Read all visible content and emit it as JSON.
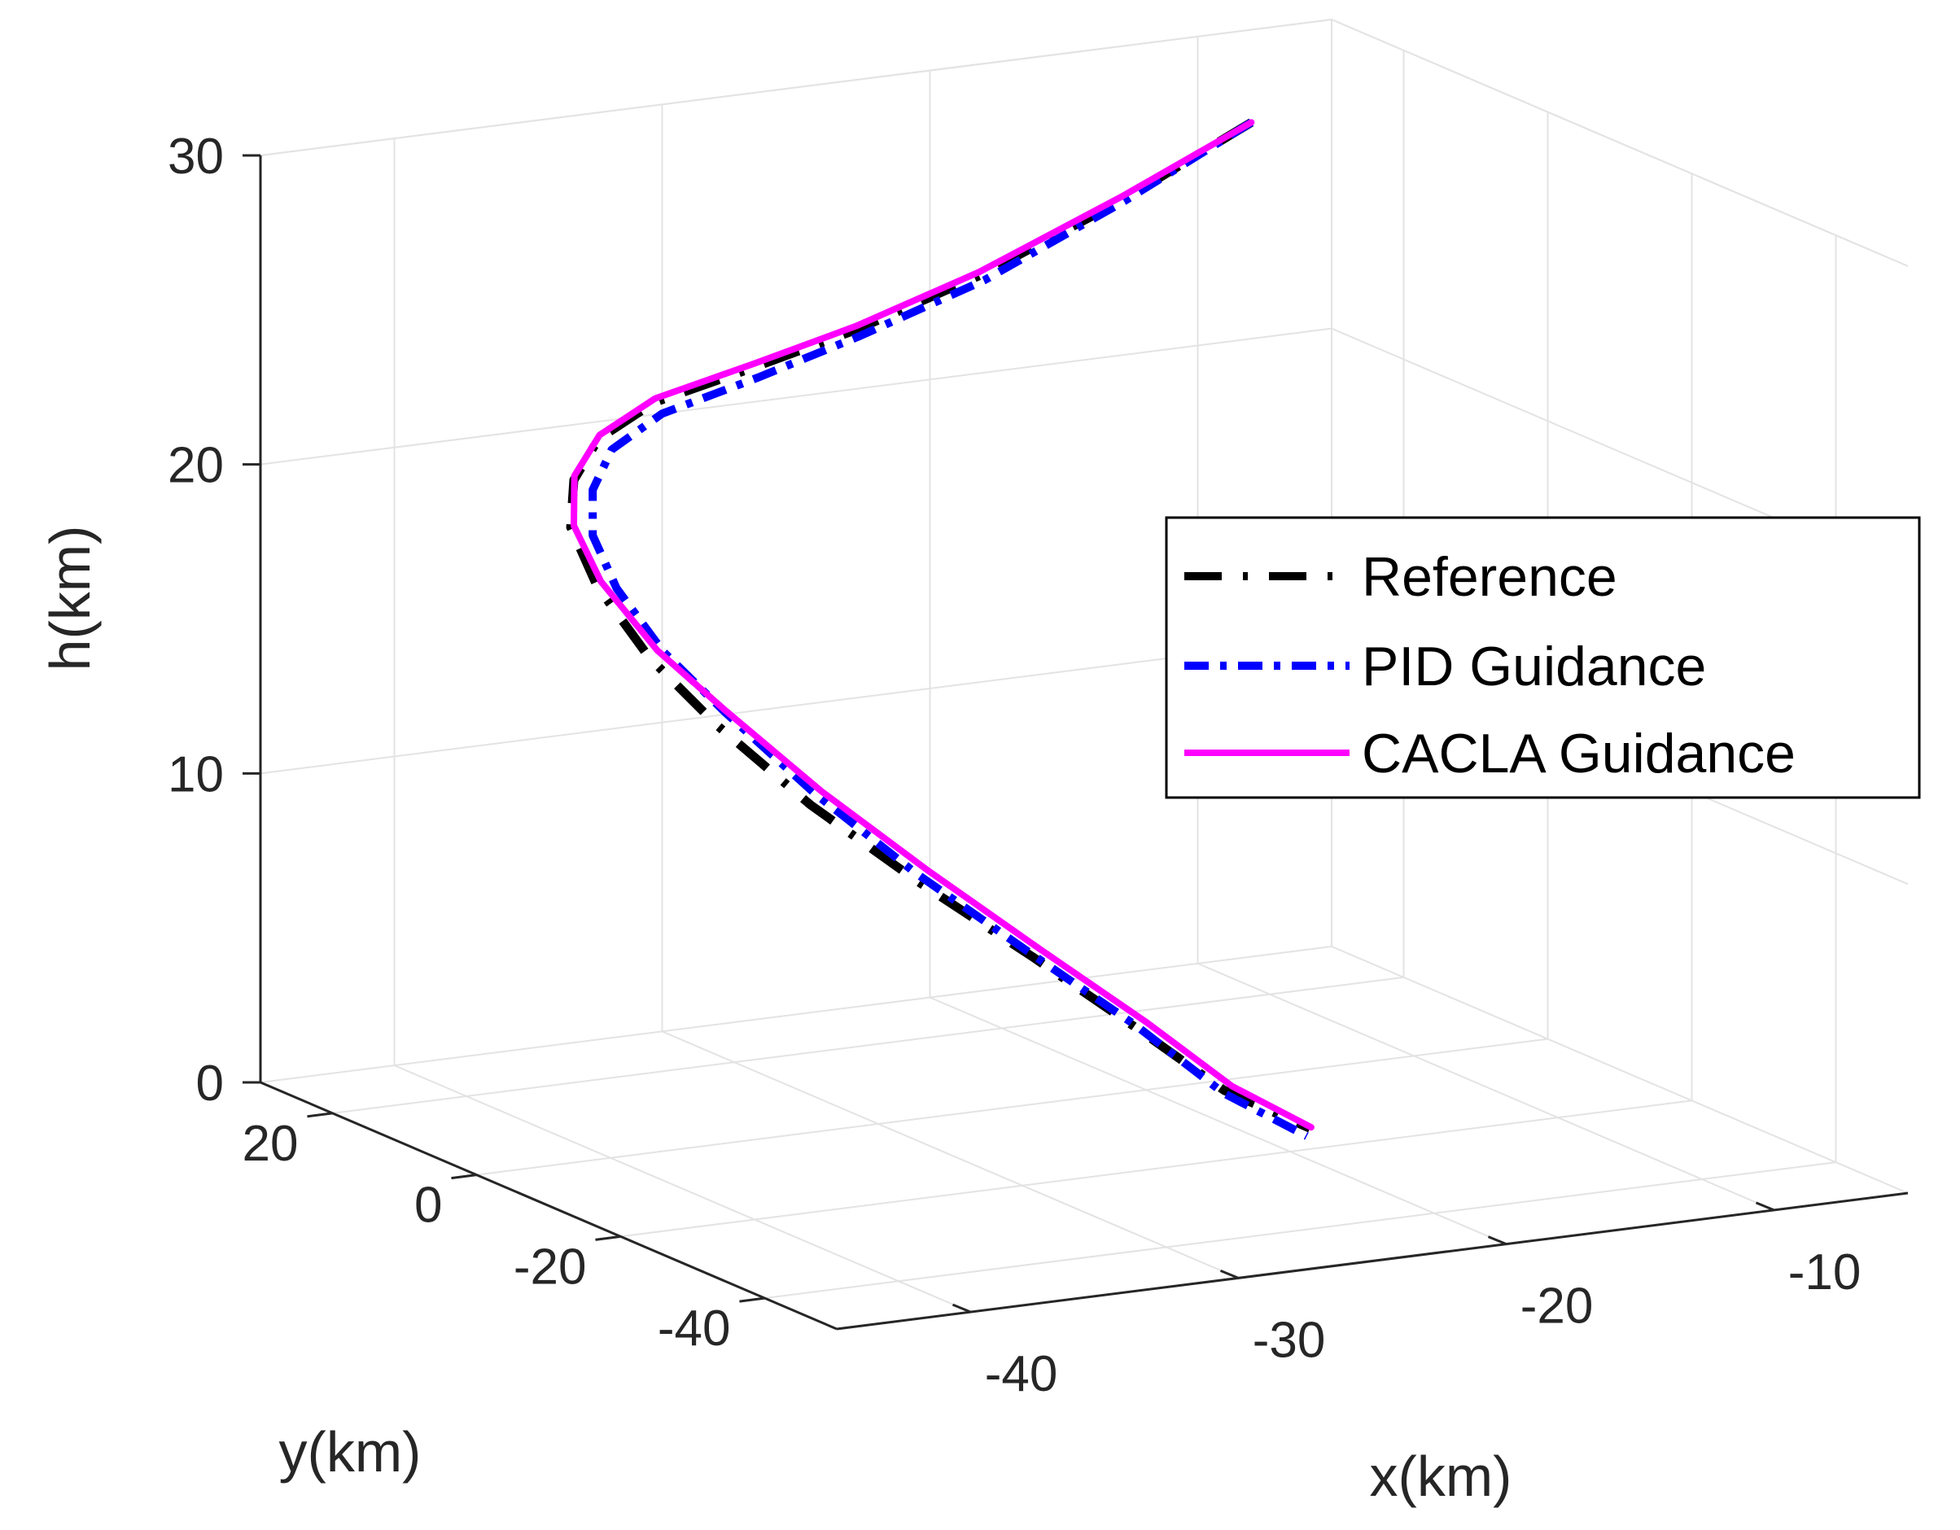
{
  "chart_data": {
    "type": "line3d",
    "title": "",
    "xlabel": "x(km)",
    "ylabel": "y(km)",
    "zlabel": "h(km)",
    "xlim": [
      -45,
      -5
    ],
    "ylim": [
      -50,
      30
    ],
    "zlim": [
      0,
      30
    ],
    "x_ticks": [
      -40,
      -30,
      -20,
      -10
    ],
    "x_tick_labels": [
      "-40",
      "-30",
      "-20",
      "-10"
    ],
    "y_ticks": [
      -40,
      -20,
      0,
      20
    ],
    "y_tick_labels": [
      "-40",
      "-20",
      "0",
      "20"
    ],
    "z_ticks": [
      0,
      10,
      20,
      30
    ],
    "z_tick_labels": [
      "0",
      "10",
      "20",
      "30"
    ],
    "grid": true,
    "legend_position": "right",
    "series": [
      {
        "name": "Reference",
        "color": "#000000",
        "style": "dash-dot",
        "x": [
          -8.0,
          -12.8,
          -18.0,
          -22.5,
          -26.1,
          -29.5,
          -31.9,
          -33.7,
          -35.3,
          -36.2,
          -36.4,
          -35.9,
          -34.4,
          -32.3,
          -29.9,
          -27.8,
          -26.1,
          -24.1
        ],
        "y": [
          30.0,
          30.1,
          30.5,
          30.9,
          31.7,
          33.0,
          31.8,
          28.5,
          23.0,
          16.0,
          8.0,
          0.4,
          -7.0,
          -14.0,
          -21.0,
          -28.0,
          -33.5,
          -38.0
        ],
        "h": [
          27.0,
          25.0,
          23.1,
          21.8,
          20.9,
          20.0,
          19.2,
          18.4,
          17.6,
          16.5,
          15.0,
          13.5,
          11.5,
          9.5,
          7.5,
          5.6,
          4.0,
          3.0
        ]
      },
      {
        "name": "PID Guidance",
        "color": "#0000ff",
        "style": "dash-dot",
        "x": [
          -8.0,
          -12.8,
          -18.0,
          -22.6,
          -26.3,
          -29.6,
          -31.8,
          -33.4,
          -34.8,
          -35.6,
          -35.8,
          -35.4,
          -34.1,
          -32.2,
          -29.9,
          -27.8,
          -26.1,
          -24.3
        ],
        "y": [
          30.0,
          29.8,
          29.9,
          30.0,
          30.5,
          31.5,
          30.3,
          27.0,
          21.8,
          15.5,
          8.3,
          1.2,
          -6.3,
          -13.3,
          -20.5,
          -27.5,
          -33.5,
          -38.3
        ],
        "h": [
          27.0,
          25.0,
          23.0,
          21.7,
          20.7,
          19.8,
          19.0,
          18.2,
          17.4,
          16.4,
          15.1,
          13.8,
          11.8,
          9.7,
          7.6,
          5.7,
          3.9,
          2.8
        ]
      },
      {
        "name": "CACLA Guidance",
        "color": "#ff00ff",
        "style": "solid",
        "x": [
          -8.0,
          -12.8,
          -18.0,
          -22.5,
          -26.1,
          -29.4,
          -31.8,
          -33.6,
          -35.1,
          -36.0,
          -36.1,
          -35.5,
          -34.0,
          -31.9,
          -29.6,
          -27.5,
          -25.8,
          -24.0
        ],
        "y": [
          30.0,
          30.2,
          30.6,
          31.0,
          31.8,
          33.2,
          32.0,
          28.8,
          23.3,
          16.2,
          8.0,
          0.7,
          -7.0,
          -14.0,
          -21.0,
          -28.0,
          -33.5,
          -37.8
        ],
        "h": [
          27.0,
          25.1,
          23.2,
          21.9,
          21.0,
          20.1,
          19.3,
          18.5,
          17.6,
          16.6,
          15.2,
          13.9,
          11.9,
          9.8,
          7.7,
          5.8,
          4.1,
          3.0
        ]
      }
    ]
  }
}
